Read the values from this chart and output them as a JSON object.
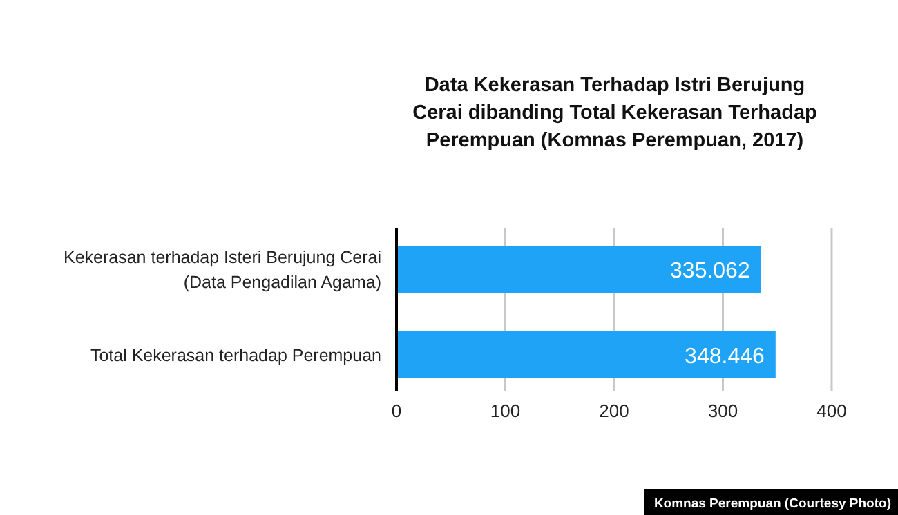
{
  "chart_data": {
    "type": "bar",
    "orientation": "horizontal",
    "title": "Data Kekerasan Terhadap Istri Berujung Cerai dibanding Total Kekerasan Terhadap Perempuan (Komnas Perempuan, 2017)",
    "categories": [
      "Kekerasan terhadap Isteri Berujung Cerai (Data Pengadilan Agama)",
      "Total Kekerasan terhadap Perempuan"
    ],
    "values": [
      335.062,
      348.446
    ],
    "color": "#1fa3f7",
    "xlim": [
      0,
      400
    ],
    "xticks": [
      0,
      100,
      200,
      300,
      400
    ],
    "grid": "x",
    "data_labels": true,
    "annotations": [
      "Komnas Perempuan (Courtesy Photo)"
    ]
  }
}
